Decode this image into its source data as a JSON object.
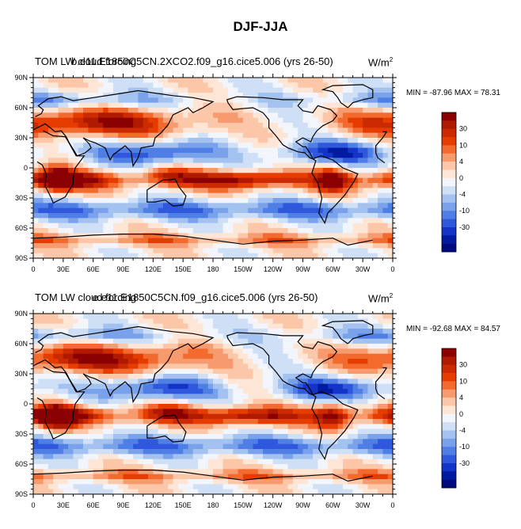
{
  "figure": {
    "title": "DJF-JJA"
  },
  "panels": [
    {
      "title_line_a": "TOM LW cloud forcing",
      "title_line_b": "b.e11.E1850C5CN.2XCO2.f09_g16.cice5.006 (yrs 26-50)",
      "units_base": "W/m",
      "units_sup": "2",
      "min_label": "MIN = -87.96",
      "max_label": "MAX =  78.31",
      "min_value": -87.96,
      "max_value": 78.31
    },
    {
      "title_line_a": "TOM LW cloud forcing",
      "title_line_b": "e.e11.E1850C5CN.f09_g16.cice5.006 (yrs 26-50)",
      "units_base": "W/m",
      "units_sup": "2",
      "min_label": "MIN = -92.68",
      "max_label": "MAX =  84.57",
      "min_value": -92.68,
      "max_value": 84.57
    }
  ],
  "axes": {
    "lat_labels": [
      "90N",
      "60N",
      "30N",
      "0",
      "30S",
      "60S",
      "90S"
    ],
    "lon_labels": [
      "0",
      "30E",
      "60E",
      "90E",
      "120E",
      "150E",
      "180",
      "150W",
      "120W",
      "90W",
      "60W",
      "30W",
      "0"
    ]
  },
  "colorbar": {
    "labels": [
      "30",
      "10",
      "4",
      "0",
      "-4",
      "-10",
      "-30"
    ],
    "colors": [
      "#8b0000",
      "#b01a00",
      "#cc2a00",
      "#e63c00",
      "#f26a2e",
      "#f79a6e",
      "#fbc7a8",
      "#fde6d6",
      "#f2f6fc",
      "#cfe0f6",
      "#a4c2f0",
      "#7aa2ea",
      "#4f7ee4",
      "#2f58dc",
      "#1434c8",
      "#001aa0",
      "#000a80"
    ]
  },
  "map": {
    "warm_colors": [
      "#fde6d6",
      "#fbc7a8",
      "#f79a6e",
      "#f26a2e",
      "#e63c00",
      "#cc2a00",
      "#b01a00",
      "#8b0000"
    ],
    "cool_colors": [
      "#f2f6fc",
      "#cfe0f6",
      "#a4c2f0",
      "#7aa2ea",
      "#4f7ee4",
      "#2f58dc",
      "#1434c8",
      "#001aa0"
    ]
  }
}
